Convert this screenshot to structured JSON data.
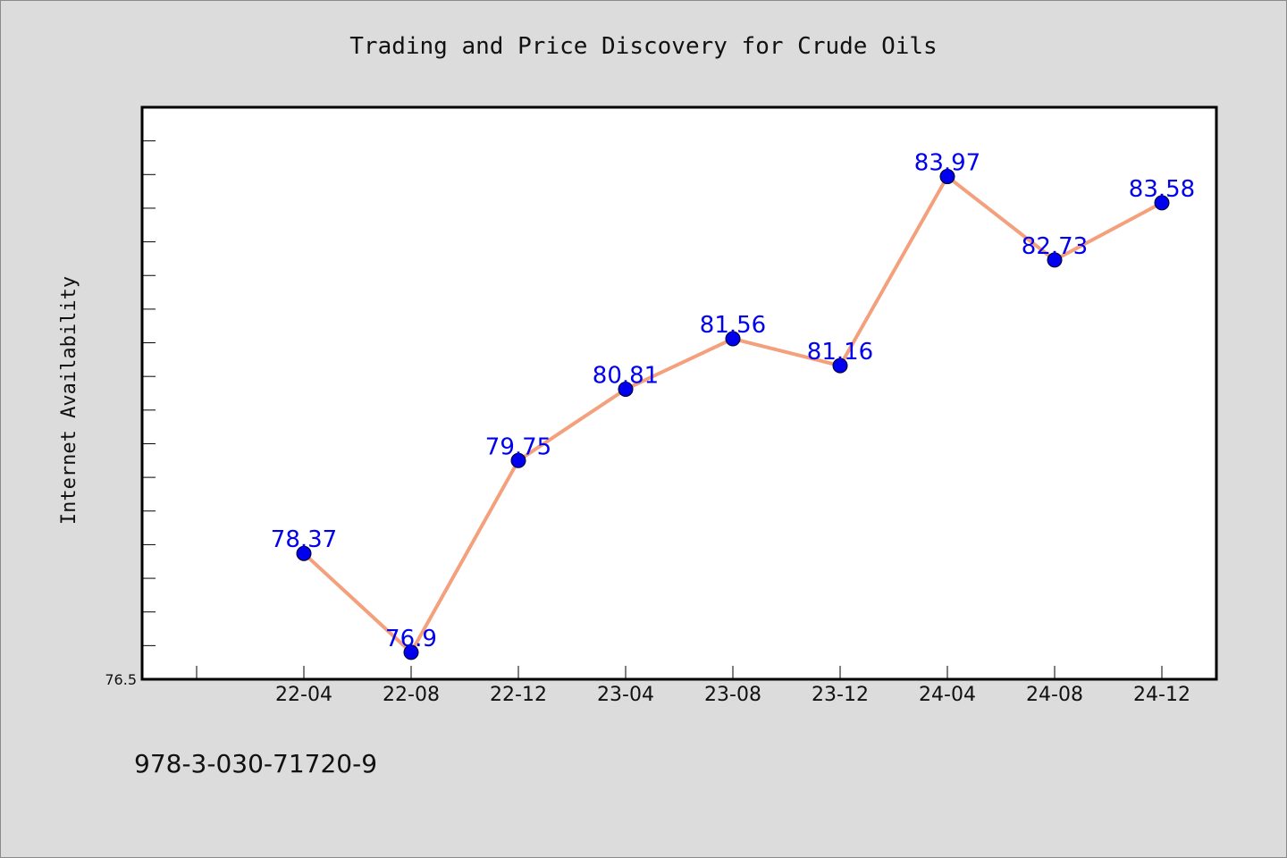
{
  "chart_data": {
    "type": "line",
    "title": "Trading and Price Discovery for Crude Oils",
    "xlabel": "",
    "ylabel": "Internet Availability",
    "categories": [
      "22-04",
      "22-08",
      "22-12",
      "23-04",
      "23-08",
      "23-12",
      "24-04",
      "24-08",
      "24-12"
    ],
    "series": [
      {
        "values": [
          78.37,
          76.9,
          79.75,
          80.81,
          81.56,
          81.16,
          83.97,
          82.73,
          83.58
        ]
      }
    ],
    "data_labels": [
      "78.37",
      "76.9",
      "79.75",
      "80.81",
      "81.56",
      "81.16",
      "83.97",
      "82.73",
      "83.58"
    ],
    "ylim": [
      76.5,
      85.0
    ],
    "y_tick_labels": [
      "76.5"
    ],
    "grid": false,
    "line_color": "#f4a07c",
    "marker_color": "#0000ee",
    "label_color": "#0000ee",
    "background_color": "#dcdcdc",
    "plot_background": "#ffffff"
  },
  "footer": {
    "isbn": "978-3-030-71720-9"
  }
}
